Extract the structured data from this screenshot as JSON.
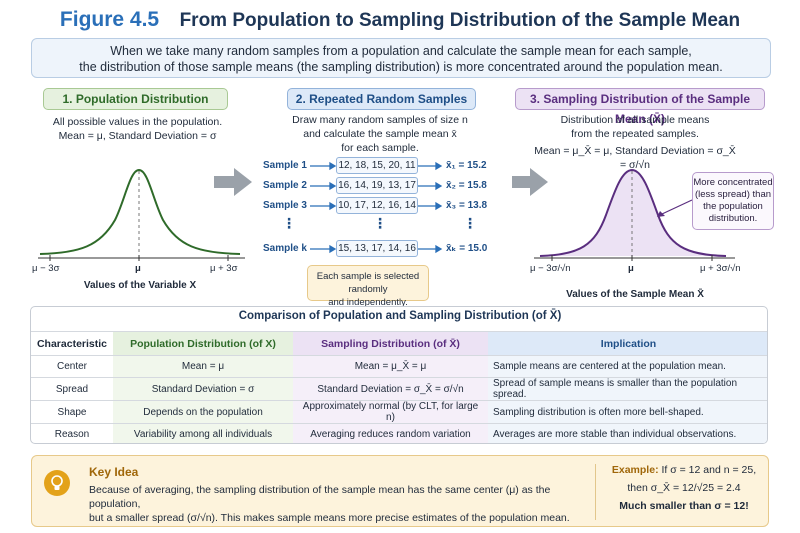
{
  "header": {
    "figure_number": "Figure 4.5",
    "title": "From Population to Sampling Distribution of the Sample Mean"
  },
  "intro": {
    "line1": "When we take many random samples from a population and calculate the sample mean for each sample,",
    "line2": "the distribution of those sample means (the sampling distribution) is more concentrated around the population mean."
  },
  "section1": {
    "title": "1. Population Distribution",
    "line1": "All possible values in the population.",
    "line2": "Mean = μ, Standard Deviation = σ",
    "x_label": "Values of the Variable X",
    "ticks": [
      "μ − 3σ",
      "μ",
      "μ + 3σ"
    ]
  },
  "section2": {
    "title": "2. Repeated Random Samples",
    "line1": "Draw many random samples of size n",
    "line2": "and calculate the sample mean x̄",
    "line3": "for each sample.",
    "samples": [
      {
        "label": "Sample 1",
        "values": "12, 18, 15, 20, 11",
        "mean": "x̄₁ = 15.2"
      },
      {
        "label": "Sample 2",
        "values": "16, 14, 19, 13, 17",
        "mean": "x̄₂ = 15.8"
      },
      {
        "label": "Sample 3",
        "values": "10, 17, 12, 16, 14",
        "mean": "x̄₃ = 13.8"
      },
      {
        "label": "Sample k",
        "values": "15, 13, 17, 14, 16",
        "mean": "x̄ₖ = 15.0"
      }
    ],
    "dots": "⋮",
    "note_line1": "Each sample is selected randomly",
    "note_line2": "and independently."
  },
  "section3": {
    "title": "3. Sampling Distribution of the Sample Mean (X̄)",
    "line1": "Distribution of all sample means",
    "line2": "from the repeated samples.",
    "line3": "Mean = μ_X̄ = μ, Standard Deviation = σ_X̄ = σ/√n",
    "callout": "More concentrated (less spread) than the population distribution.",
    "x_label": "Values of the Sample Mean X̄",
    "ticks": [
      "μ − 3σ/√n",
      "μ",
      "μ + 3σ/√n"
    ]
  },
  "table": {
    "title": "Comparison of Population and Sampling Distribution (of X̄)",
    "headers": [
      "Characteristic",
      "Population Distribution (of X)",
      "Sampling Distribution (of X̄)",
      "Implication"
    ],
    "rows": [
      [
        "Center",
        "Mean = μ",
        "Mean = μ_X̄ = μ",
        "Sample means are centered at the population mean."
      ],
      [
        "Spread",
        "Standard Deviation = σ",
        "Standard Deviation = σ_X̄ = σ/√n",
        "Spread of sample means is smaller than the population spread."
      ],
      [
        "Shape",
        "Depends on the population",
        "Approximately normal (by CLT, for large n)",
        "Sampling distribution is often more bell-shaped."
      ],
      [
        "Reason",
        "Variability among all individuals",
        "Averaging reduces random variation",
        "Averages are more stable than individual observations."
      ]
    ]
  },
  "key_idea": {
    "title": "Key Idea",
    "line1": "Because of averaging, the sampling distribution of the sample mean has the same center (μ) as the population,",
    "line2": "but a smaller spread (σ/√n). This makes sample means more precise estimates of the population mean.",
    "example_label": "Example:",
    "example_line1": "If σ = 12 and n = 25,",
    "example_line2": "then σ_X̄ = 12/√25 = 2.4",
    "example_line3": "Much smaller than σ = 12!"
  },
  "colors": {
    "population": "#2f6b2a",
    "samples": "#1f4f87",
    "sampling": "#5a2e7f",
    "arrow_gray": "#9aa1a9",
    "key_accent": "#e3a21a"
  }
}
